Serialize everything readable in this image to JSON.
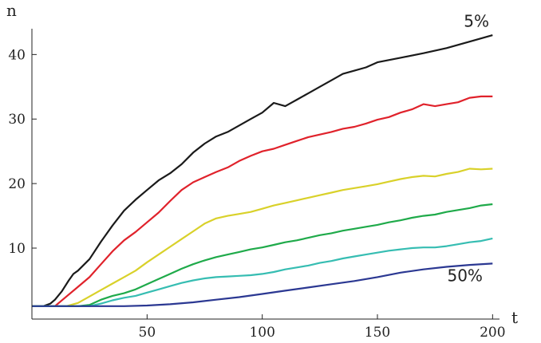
{
  "chart_data": {
    "type": "line",
    "xlabel": "t",
    "ylabel": "n",
    "xlim": [
      0,
      203
    ],
    "ylim": [
      -1,
      44
    ],
    "xticks": [
      50,
      100,
      150,
      200
    ],
    "yticks": [
      10,
      20,
      30,
      40
    ],
    "grid": false,
    "legend": "none",
    "annotations": [
      {
        "text": "5%",
        "x": 193,
        "y": 44.3
      },
      {
        "text": "50%",
        "x": 188,
        "y": 4.9
      }
    ],
    "series": [
      {
        "color": "#1a1a1a",
        "x": [
          0,
          5,
          8,
          10,
          13,
          16,
          18,
          20,
          25,
          30,
          35,
          40,
          45,
          50,
          55,
          60,
          65,
          70,
          75,
          80,
          85,
          90,
          95,
          100,
          105,
          110,
          115,
          120,
          125,
          130,
          135,
          140,
          145,
          150,
          160,
          170,
          180,
          190,
          200
        ],
        "y": [
          1,
          1,
          1.4,
          2,
          3.3,
          5,
          6,
          6.5,
          8.3,
          11,
          13.5,
          15.8,
          17.5,
          19,
          20.5,
          21.6,
          23,
          24.8,
          26.2,
          27.3,
          28,
          29,
          30,
          31,
          32.5,
          32,
          33,
          34,
          35,
          36,
          37,
          37.5,
          38,
          38.8,
          39.5,
          40.2,
          41,
          42,
          43
        ]
      },
      {
        "color": "#e0222b",
        "x": [
          0,
          5,
          10,
          15,
          20,
          25,
          30,
          35,
          40,
          45,
          50,
          55,
          60,
          65,
          70,
          75,
          80,
          85,
          90,
          95,
          100,
          105,
          110,
          115,
          120,
          125,
          130,
          135,
          140,
          145,
          150,
          155,
          160,
          165,
          170,
          175,
          180,
          185,
          190,
          195,
          200
        ],
        "y": [
          1,
          1,
          1,
          2.5,
          4,
          5.5,
          7.5,
          9.5,
          11.2,
          12.5,
          14,
          15.5,
          17.3,
          19,
          20.2,
          21,
          21.8,
          22.5,
          23.5,
          24.3,
          25,
          25.4,
          26,
          26.6,
          27.2,
          27.6,
          28,
          28.5,
          28.8,
          29.3,
          29.9,
          30.3,
          31,
          31.5,
          32.3,
          32,
          32.3,
          32.6,
          33.3,
          33.5,
          33.5
        ]
      },
      {
        "color": "#d9d12a",
        "x": [
          0,
          15,
          20,
          25,
          30,
          35,
          40,
          45,
          50,
          55,
          60,
          65,
          70,
          75,
          80,
          85,
          90,
          95,
          100,
          105,
          110,
          115,
          120,
          125,
          130,
          135,
          140,
          145,
          150,
          155,
          160,
          165,
          170,
          175,
          180,
          185,
          190,
          195,
          200
        ],
        "y": [
          1,
          1,
          1.5,
          2.5,
          3.5,
          4.5,
          5.5,
          6.5,
          7.8,
          9,
          10.2,
          11.4,
          12.6,
          13.8,
          14.6,
          15,
          15.3,
          15.6,
          16.1,
          16.6,
          17,
          17.4,
          17.8,
          18.2,
          18.6,
          19,
          19.3,
          19.6,
          19.9,
          20.3,
          20.7,
          21,
          21.2,
          21.1,
          21.5,
          21.8,
          22.3,
          22.2,
          22.3
        ]
      },
      {
        "color": "#1faa4a",
        "x": [
          0,
          20,
          25,
          30,
          35,
          40,
          45,
          50,
          55,
          60,
          65,
          70,
          75,
          80,
          85,
          90,
          95,
          100,
          105,
          110,
          115,
          120,
          125,
          130,
          135,
          140,
          145,
          150,
          155,
          160,
          165,
          170,
          175,
          180,
          185,
          190,
          195,
          200
        ],
        "y": [
          1,
          1,
          1.2,
          2,
          2.6,
          3,
          3.6,
          4.4,
          5.2,
          6,
          6.8,
          7.5,
          8.1,
          8.6,
          9,
          9.4,
          9.8,
          10.1,
          10.5,
          10.9,
          11.2,
          11.6,
          12,
          12.3,
          12.7,
          13,
          13.3,
          13.6,
          14,
          14.3,
          14.7,
          15,
          15.2,
          15.6,
          15.9,
          16.2,
          16.6,
          16.8
        ]
      },
      {
        "color": "#36bdb2",
        "x": [
          0,
          25,
          30,
          35,
          40,
          45,
          50,
          55,
          60,
          65,
          70,
          75,
          80,
          85,
          90,
          95,
          100,
          105,
          110,
          115,
          120,
          125,
          130,
          135,
          140,
          145,
          150,
          155,
          160,
          165,
          170,
          175,
          180,
          185,
          190,
          195,
          200
        ],
        "y": [
          1,
          1,
          1.4,
          1.9,
          2.3,
          2.6,
          3.1,
          3.6,
          4.1,
          4.6,
          5,
          5.3,
          5.5,
          5.6,
          5.7,
          5.8,
          6,
          6.3,
          6.7,
          7,
          7.3,
          7.7,
          8,
          8.4,
          8.7,
          9,
          9.3,
          9.6,
          9.8,
          10,
          10.1,
          10.1,
          10.3,
          10.6,
          10.9,
          11.1,
          11.5
        ]
      },
      {
        "color": "#2b3892",
        "x": [
          0,
          40,
          50,
          60,
          70,
          80,
          90,
          100,
          110,
          120,
          130,
          140,
          150,
          160,
          170,
          180,
          190,
          200
        ],
        "y": [
          1,
          1,
          1.1,
          1.3,
          1.6,
          2,
          2.4,
          2.9,
          3.4,
          3.9,
          4.4,
          4.9,
          5.5,
          6.2,
          6.7,
          7.1,
          7.4,
          7.6
        ]
      }
    ]
  }
}
